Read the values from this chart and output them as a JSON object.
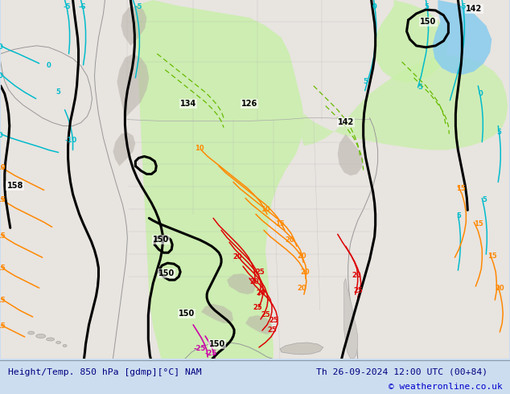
{
  "title_left": "Height/Temp. 850 hPa [gdmp][°C] NAM",
  "title_right": "Th 26-09-2024 12:00 UTC (00+84)",
  "copyright": "© weatheronline.co.uk",
  "footer_bg": "#ccddf0",
  "footer_text_color": "#000080",
  "copyright_color": "#0000cc",
  "map_bg": "#e8e4e0",
  "green_fill": "#c8f0a8",
  "blue_fill": "#88ccee",
  "figsize": [
    6.34,
    4.9
  ],
  "dpi": 100,
  "black_lw": 2.2,
  "color_cyan": "#00bbcc",
  "color_orange": "#ff8800",
  "color_red": "#dd0000",
  "color_magenta": "#cc00aa",
  "color_green_line": "#66bb00",
  "color_black": "#000000",
  "color_gray_coast": "#999999",
  "color_gray_terrain": "#aaaaaa"
}
